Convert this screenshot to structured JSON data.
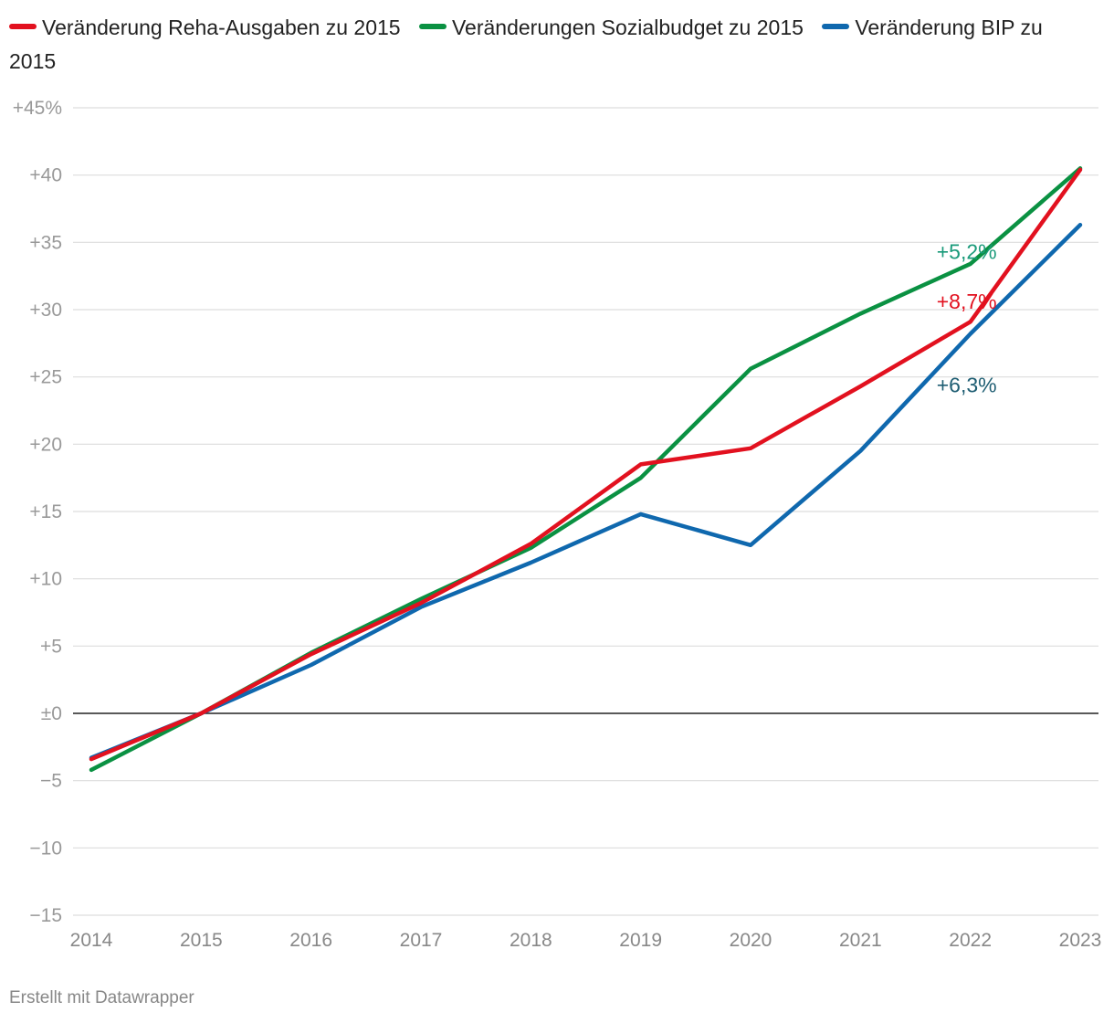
{
  "chart_data": {
    "type": "line",
    "title": "",
    "xlabel": "",
    "ylabel": "",
    "x": [
      "2014",
      "2015",
      "2016",
      "2017",
      "2018",
      "2019",
      "2020",
      "2021",
      "2022",
      "2023"
    ],
    "ylim": [
      -15,
      45
    ],
    "yticks": [
      {
        "value": 45,
        "label": "+45%"
      },
      {
        "value": 40,
        "label": "+40"
      },
      {
        "value": 35,
        "label": "+35"
      },
      {
        "value": 30,
        "label": "+30"
      },
      {
        "value": 25,
        "label": "+25"
      },
      {
        "value": 20,
        "label": "+20"
      },
      {
        "value": 15,
        "label": "+15"
      },
      {
        "value": 10,
        "label": "+10"
      },
      {
        "value": 5,
        "label": "+5"
      },
      {
        "value": 0,
        "label": "±0"
      },
      {
        "value": -5,
        "label": "−5"
      },
      {
        "value": -10,
        "label": "−10"
      },
      {
        "value": -15,
        "label": "−15"
      }
    ],
    "series": [
      {
        "name": "Veränderungen Sozialbudget zu 2015",
        "color": "#0a9142",
        "values": [
          -4.2,
          0,
          4.5,
          8.5,
          12.3,
          17.5,
          25.6,
          29.7,
          33.4,
          40.5
        ]
      },
      {
        "name": "Veränderung BIP zu 2015",
        "color": "#0f68ae",
        "values": [
          -3.3,
          0,
          3.6,
          7.9,
          11.2,
          14.8,
          12.5,
          19.5,
          28.2,
          36.3
        ]
      },
      {
        "name": "Veränderung Reha-Ausgaben zu 2015",
        "color": "#e2111f",
        "values": [
          -3.4,
          0,
          4.4,
          8.2,
          12.6,
          18.5,
          19.7,
          24.3,
          29.1,
          40.4
        ]
      }
    ],
    "legend_order": [
      2,
      0,
      1
    ],
    "annotations": [
      {
        "text": "+5,2%",
        "color": "#1a9a7a",
        "x": "2022",
        "y": 34.3
      },
      {
        "text": "+8,7%",
        "color": "#e2111f",
        "x": "2022",
        "y": 30.6
      },
      {
        "text": "+6,3%",
        "color": "#1f5e73",
        "x": "2022",
        "y": 24.4
      }
    ],
    "zero_line_color": "#222222",
    "grid": true,
    "legend": "top-left"
  },
  "credit": "Erstellt mit Datawrapper"
}
